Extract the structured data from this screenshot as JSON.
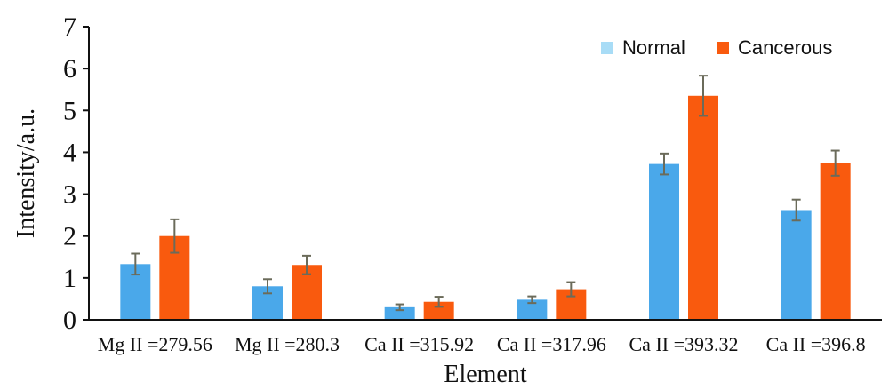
{
  "chart_data": {
    "type": "bar",
    "title": "",
    "xlabel": "Element",
    "ylabel": "Intensity/a.u.",
    "ylim": [
      0,
      7
    ],
    "yticks": [
      0,
      1,
      2,
      3,
      4,
      5,
      6,
      7
    ],
    "categories": [
      "Mg II =279.56",
      "Mg II =280.3",
      "Ca II =315.92",
      "Ca II =317.96",
      "Ca II =393.32",
      "Ca II =396.8"
    ],
    "series": [
      {
        "name": "Normal",
        "color": "#4aa8ea",
        "values": [
          1.33,
          0.8,
          0.3,
          0.48,
          3.72,
          2.62
        ],
        "errors": [
          0.25,
          0.17,
          0.07,
          0.08,
          0.25,
          0.25
        ]
      },
      {
        "name": "Cancerous",
        "color": "#f95a0e",
        "values": [
          2.0,
          1.31,
          0.43,
          0.73,
          5.35,
          3.74
        ],
        "errors": [
          0.4,
          0.22,
          0.12,
          0.17,
          0.48,
          0.3
        ]
      }
    ],
    "grid": false,
    "legend": "top-right",
    "legend_colors": {
      "Normal": "#a8dcf6",
      "Cancerous": "#f95a0e"
    }
  }
}
